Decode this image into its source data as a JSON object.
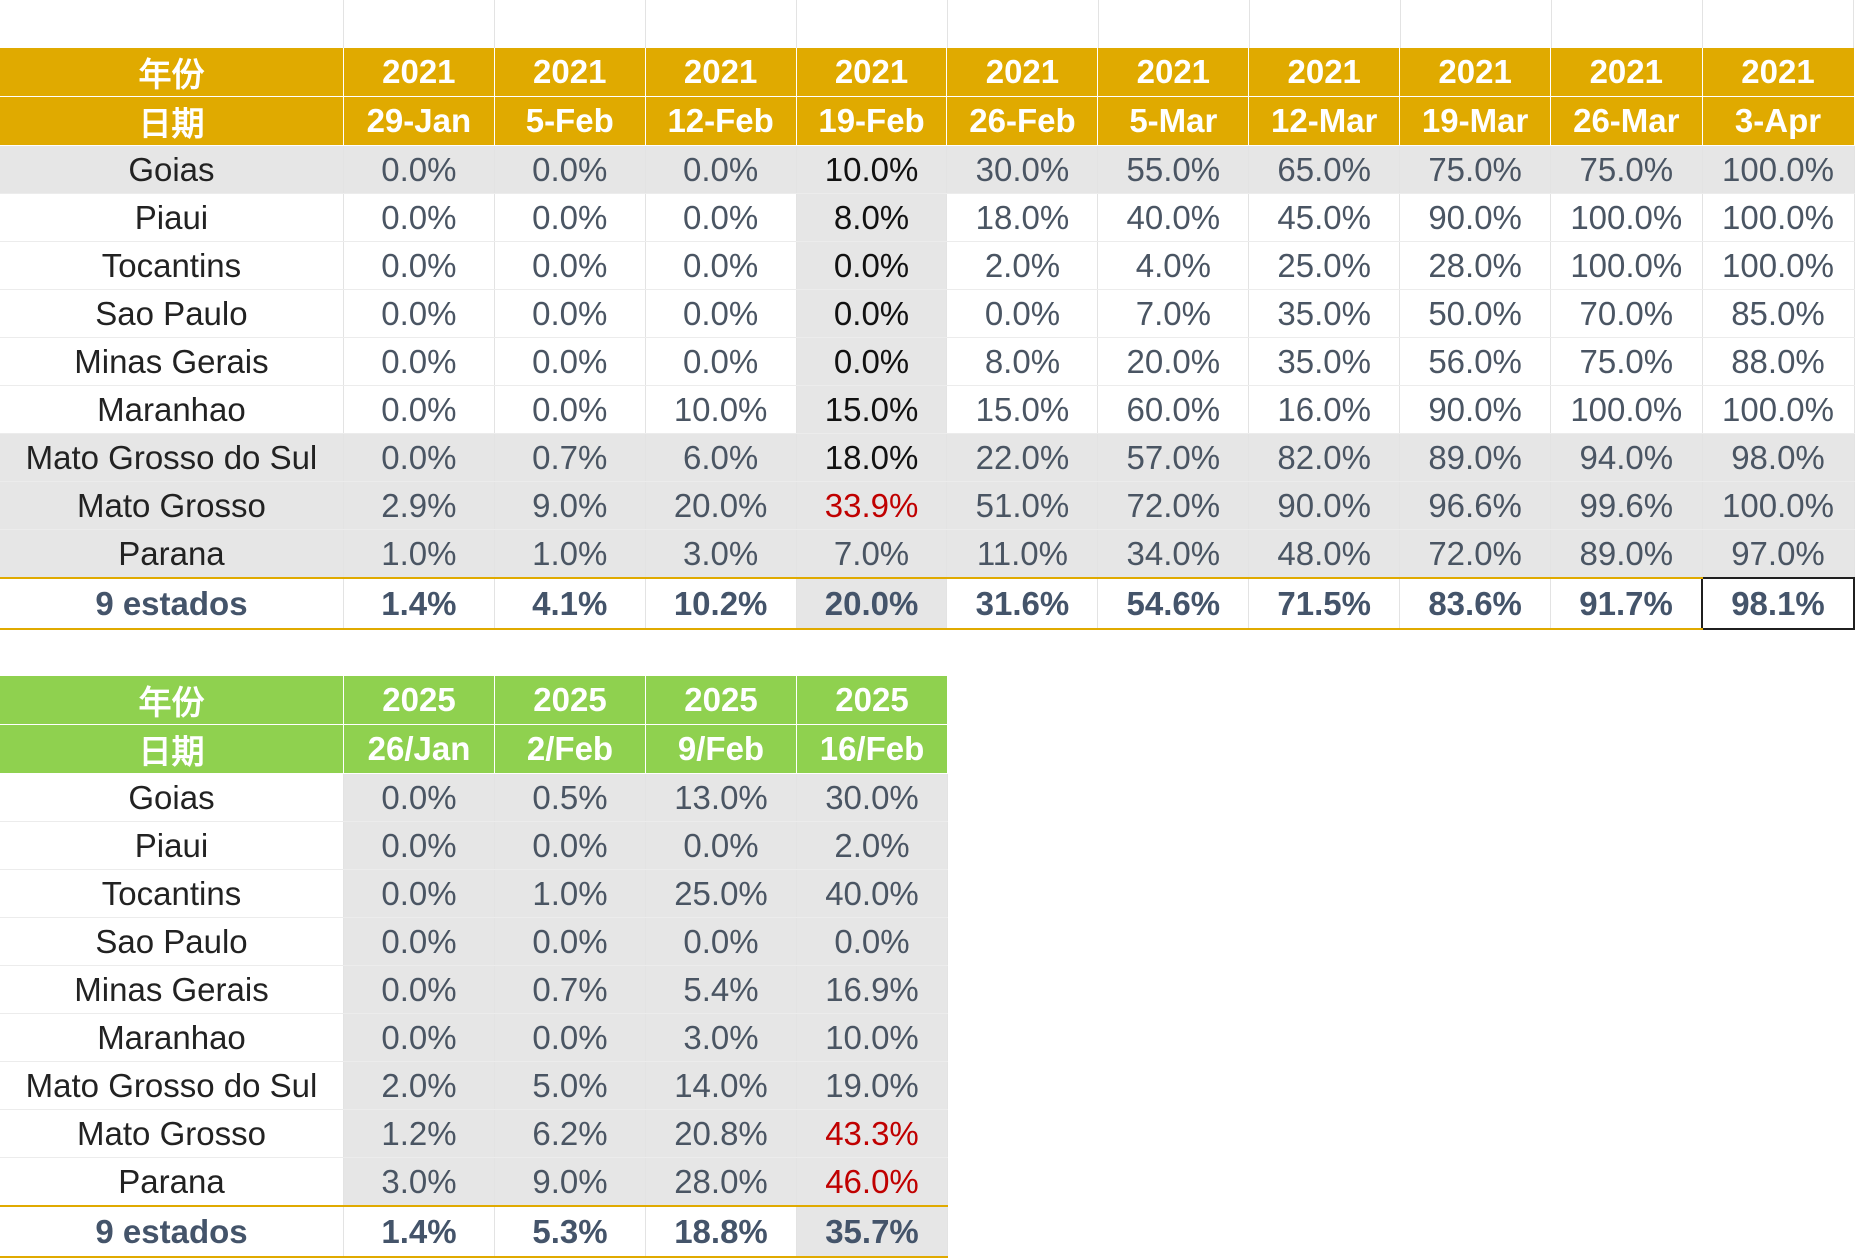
{
  "table_2021": {
    "year_label": "年份",
    "date_label": "日期",
    "years": [
      "2021",
      "2021",
      "2021",
      "2021",
      "2021",
      "2021",
      "2021",
      "2021",
      "2021",
      "2021"
    ],
    "dates": [
      "29-Jan",
      "5-Feb",
      "12-Feb",
      "19-Feb",
      "26-Feb",
      "5-Mar",
      "12-Mar",
      "19-Mar",
      "26-Mar",
      "3-Apr"
    ],
    "rows": [
      {
        "state": "Goias",
        "values": [
          "0.0%",
          "0.0%",
          "0.0%",
          "10.0%",
          "30.0%",
          "55.0%",
          "65.0%",
          "75.0%",
          "75.0%",
          "100.0%"
        ]
      },
      {
        "state": "Piaui",
        "values": [
          "0.0%",
          "0.0%",
          "0.0%",
          "8.0%",
          "18.0%",
          "40.0%",
          "45.0%",
          "90.0%",
          "100.0%",
          "100.0%"
        ]
      },
      {
        "state": "Tocantins",
        "values": [
          "0.0%",
          "0.0%",
          "0.0%",
          "0.0%",
          "2.0%",
          "4.0%",
          "25.0%",
          "28.0%",
          "100.0%",
          "100.0%"
        ]
      },
      {
        "state": "Sao Paulo",
        "values": [
          "0.0%",
          "0.0%",
          "0.0%",
          "0.0%",
          "0.0%",
          "7.0%",
          "35.0%",
          "50.0%",
          "70.0%",
          "85.0%"
        ]
      },
      {
        "state": "Minas Gerais",
        "values": [
          "0.0%",
          "0.0%",
          "0.0%",
          "0.0%",
          "8.0%",
          "20.0%",
          "35.0%",
          "56.0%",
          "75.0%",
          "88.0%"
        ]
      },
      {
        "state": "Maranhao",
        "values": [
          "0.0%",
          "0.0%",
          "10.0%",
          "15.0%",
          "15.0%",
          "60.0%",
          "16.0%",
          "90.0%",
          "100.0%",
          "100.0%"
        ]
      },
      {
        "state": "Mato Grosso do Sul",
        "values": [
          "0.0%",
          "0.7%",
          "6.0%",
          "18.0%",
          "22.0%",
          "57.0%",
          "82.0%",
          "89.0%",
          "94.0%",
          "98.0%"
        ]
      },
      {
        "state": "Mato Grosso",
        "values": [
          "2.9%",
          "9.0%",
          "20.0%",
          "33.9%",
          "51.0%",
          "72.0%",
          "90.0%",
          "96.6%",
          "99.6%",
          "100.0%"
        ]
      },
      {
        "state": "Parana",
        "values": [
          "1.0%",
          "1.0%",
          "3.0%",
          "7.0%",
          "11.0%",
          "34.0%",
          "48.0%",
          "72.0%",
          "89.0%",
          "97.0%"
        ]
      }
    ],
    "total": {
      "state": "9 estados",
      "values": [
        "1.4%",
        "4.1%",
        "10.2%",
        "20.0%",
        "31.6%",
        "54.6%",
        "71.5%",
        "83.6%",
        "91.7%",
        "98.1%"
      ]
    }
  },
  "table_2025": {
    "year_label": "年份",
    "date_label": "日期",
    "years": [
      "2025",
      "2025",
      "2025",
      "2025"
    ],
    "dates": [
      "26/Jan",
      "2/Feb",
      "9/Feb",
      "16/Feb"
    ],
    "rows": [
      {
        "state": "Goias",
        "values": [
          "0.0%",
          "0.5%",
          "13.0%",
          "30.0%"
        ]
      },
      {
        "state": "Piaui",
        "values": [
          "0.0%",
          "0.0%",
          "0.0%",
          "2.0%"
        ]
      },
      {
        "state": "Tocantins",
        "values": [
          "0.0%",
          "1.0%",
          "25.0%",
          "40.0%"
        ]
      },
      {
        "state": "Sao Paulo",
        "values": [
          "0.0%",
          "0.0%",
          "0.0%",
          "0.0%"
        ]
      },
      {
        "state": "Minas Gerais",
        "values": [
          "0.0%",
          "0.7%",
          "5.4%",
          "16.9%"
        ]
      },
      {
        "state": "Maranhao",
        "values": [
          "0.0%",
          "0.0%",
          "3.0%",
          "10.0%"
        ]
      },
      {
        "state": "Mato Grosso do Sul",
        "values": [
          "2.0%",
          "5.0%",
          "14.0%",
          "19.0%"
        ]
      },
      {
        "state": "Mato Grosso",
        "values": [
          "1.2%",
          "6.2%",
          "20.8%",
          "43.3%"
        ]
      },
      {
        "state": "Parana",
        "values": [
          "3.0%",
          "9.0%",
          "28.0%",
          "46.0%"
        ]
      }
    ],
    "total": {
      "state": "9 estados",
      "values": [
        "1.4%",
        "5.3%",
        "18.8%",
        "35.7%"
      ]
    }
  },
  "colors": {
    "header_2021": "#e0aa00",
    "header_2025": "#8fd14f",
    "shade": "#e6e6e6",
    "highlight_red": "#c00000",
    "total_text": "#44546a"
  }
}
